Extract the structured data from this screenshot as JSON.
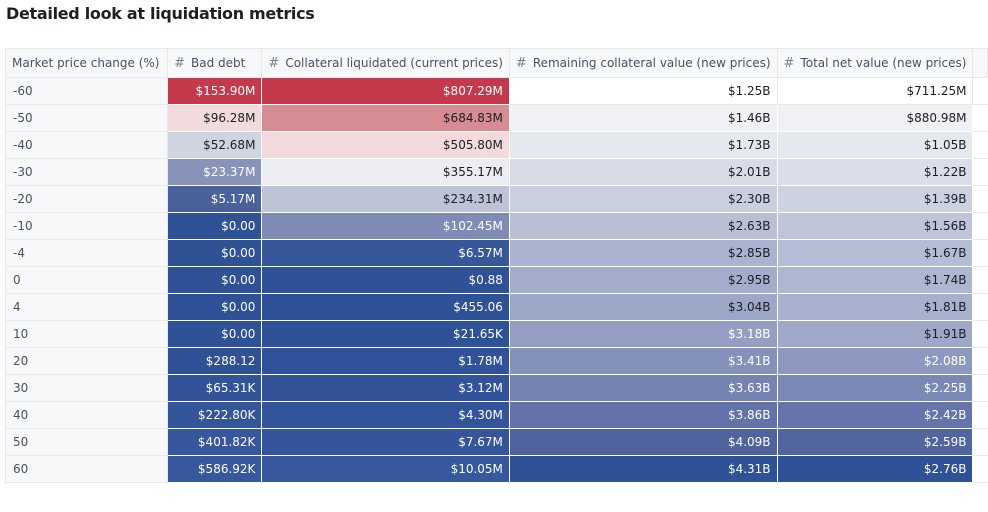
{
  "title": "Detailed look at liquidation metrics",
  "table": {
    "columns": [
      {
        "label": "Market price change (%)",
        "icon": "none"
      },
      {
        "label": "Bad debt",
        "icon": "hash-icon"
      },
      {
        "label": "Collateral liquidated (current prices)",
        "icon": "hash-icon"
      },
      {
        "label": "Remaining collateral value (new prices)",
        "icon": "hash-icon"
      },
      {
        "label": "Total net value (new prices)",
        "icon": "hash-icon"
      }
    ],
    "rows": [
      {
        "change": "-60",
        "bad_debt": "$153.90M",
        "collateral_liquidated": "$807.29M",
        "remaining_collateral": "$1.25B",
        "total_net": "$711.25M"
      },
      {
        "change": "-50",
        "bad_debt": "$96.28M",
        "collateral_liquidated": "$684.83M",
        "remaining_collateral": "$1.46B",
        "total_net": "$880.98M"
      },
      {
        "change": "-40",
        "bad_debt": "$52.68M",
        "collateral_liquidated": "$505.80M",
        "remaining_collateral": "$1.73B",
        "total_net": "$1.05B"
      },
      {
        "change": "-30",
        "bad_debt": "$23.37M",
        "collateral_liquidated": "$355.17M",
        "remaining_collateral": "$2.01B",
        "total_net": "$1.22B"
      },
      {
        "change": "-20",
        "bad_debt": "$5.17M",
        "collateral_liquidated": "$234.31M",
        "remaining_collateral": "$2.30B",
        "total_net": "$1.39B"
      },
      {
        "change": "-10",
        "bad_debt": "$0.00",
        "collateral_liquidated": "$102.45M",
        "remaining_collateral": "$2.63B",
        "total_net": "$1.56B"
      },
      {
        "change": "-4",
        "bad_debt": "$0.00",
        "collateral_liquidated": "$6.57M",
        "remaining_collateral": "$2.85B",
        "total_net": "$1.67B"
      },
      {
        "change": "0",
        "bad_debt": "$0.00",
        "collateral_liquidated": "$0.88",
        "remaining_collateral": "$2.95B",
        "total_net": "$1.74B"
      },
      {
        "change": "4",
        "bad_debt": "$0.00",
        "collateral_liquidated": "$455.06",
        "remaining_collateral": "$3.04B",
        "total_net": "$1.81B"
      },
      {
        "change": "10",
        "bad_debt": "$0.00",
        "collateral_liquidated": "$21.65K",
        "remaining_collateral": "$3.18B",
        "total_net": "$1.91B"
      },
      {
        "change": "20",
        "bad_debt": "$288.12",
        "collateral_liquidated": "$1.78M",
        "remaining_collateral": "$3.41B",
        "total_net": "$2.08B"
      },
      {
        "change": "30",
        "bad_debt": "$65.31K",
        "collateral_liquidated": "$3.12M",
        "remaining_collateral": "$3.63B",
        "total_net": "$2.25B"
      },
      {
        "change": "40",
        "bad_debt": "$222.80K",
        "collateral_liquidated": "$4.30M",
        "remaining_collateral": "$3.86B",
        "total_net": "$2.42B"
      },
      {
        "change": "50",
        "bad_debt": "$401.82K",
        "collateral_liquidated": "$7.67M",
        "remaining_collateral": "$4.09B",
        "total_net": "$2.59B"
      },
      {
        "change": "60",
        "bad_debt": "$586.92K",
        "collateral_liquidated": "$10.05M",
        "remaining_collateral": "$4.31B",
        "total_net": "$2.76B"
      }
    ],
    "cell_colors": {
      "bad_debt": [
        "#c43a4c",
        "#f2dadd",
        "#cfd4e1",
        "#8893b9",
        "#4b619c",
        "#2f5196",
        "#2f5196",
        "#2f5196",
        "#2f5196",
        "#2f5196",
        "#2f5196",
        "#32539a",
        "#34559a",
        "#36579b",
        "#37589c"
      ],
      "collateral_liquidated": [
        "#c43a4c",
        "#d78c93",
        "#f2dadd",
        "#ececf2",
        "#bec3d7",
        "#7e8bb4",
        "#37579b",
        "#2f5196",
        "#2f5196",
        "#2f5196",
        "#30529a",
        "#32539a",
        "#33549a",
        "#34559a",
        "#37589c"
      ],
      "remaining_collateral": [
        "#ffffff",
        "#f0f1f5",
        "#e6e8ef",
        "#d9dce7",
        "#cacfdf",
        "#b9c0d6",
        "#aab2cf",
        "#a3accb",
        "#9da7c8",
        "#939ec2",
        "#8491bb",
        "#7583b3",
        "#6373a9",
        "#4f649f",
        "#2f5196"
      ],
      "total_net": [
        "#ffffff",
        "#f0f1f5",
        "#e6e8ef",
        "#dbdee8",
        "#cdd2e1",
        "#bfc4da",
        "#b5bcd6",
        "#aeb6d2",
        "#a8b0ce",
        "#9ea8c9",
        "#8c98bf",
        "#7a88b6",
        "#6575ab",
        "#51659f",
        "#2f5196"
      ],
      "text_light": "#ffffff",
      "text_dark": "#1c1f24"
    }
  }
}
